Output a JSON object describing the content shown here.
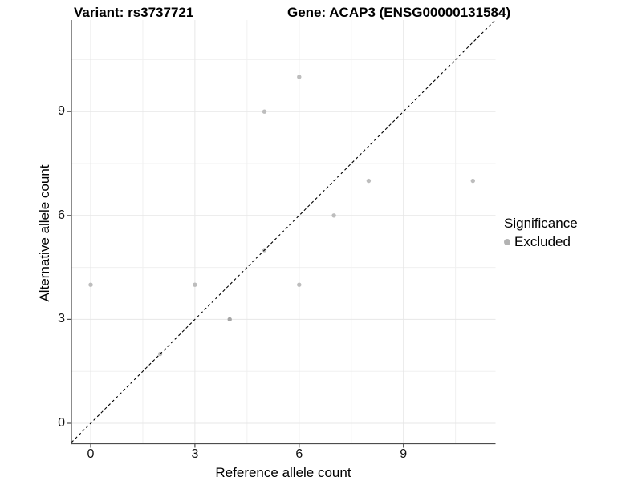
{
  "title": {
    "variant": "Variant: rs3737721",
    "gene": "Gene: ACAP3 (ENSG00000131584)"
  },
  "legend": {
    "title": "Significance",
    "items": [
      {
        "label": "Excluded",
        "color": "#b3b3b3"
      }
    ]
  },
  "chart_data": {
    "type": "scatter",
    "title": "Variant: rs3737721 | Gene: ACAP3 (ENSG00000131584)",
    "xlabel": "Reference allele count",
    "ylabel": "Alternative allele count",
    "x_ticks": [
      0,
      3,
      6,
      9
    ],
    "y_ticks": [
      0,
      3,
      6,
      9
    ],
    "minor_gridlines": [
      1.5,
      4.5,
      7.5,
      10.5
    ],
    "xlim": [
      -0.55,
      11.65
    ],
    "ylim": [
      -0.6,
      11.65
    ],
    "grid": true,
    "legend_position": "right",
    "series": [
      {
        "name": "Excluded",
        "points": [
          [
            0,
            4
          ],
          [
            2,
            2
          ],
          [
            3,
            4
          ],
          [
            4,
            3
          ],
          [
            5,
            5
          ],
          [
            5,
            9
          ],
          [
            6,
            4
          ],
          [
            6,
            10
          ],
          [
            7,
            6
          ],
          [
            8,
            7
          ],
          [
            11,
            7
          ]
        ]
      }
    ],
    "darker_points": [
      [
        4,
        3
      ]
    ],
    "reference_line": {
      "type": "identity y = x",
      "style": "dashed",
      "color": "#000000"
    }
  },
  "style": {
    "point_color": "#bdbdbd",
    "dark_point_color": "#a6a6a6",
    "grid_major_color": "#e7e7e7",
    "grid_minor_color": "#f0f0f0",
    "axis_color": "#4d4d4d",
    "background": "#ffffff"
  }
}
